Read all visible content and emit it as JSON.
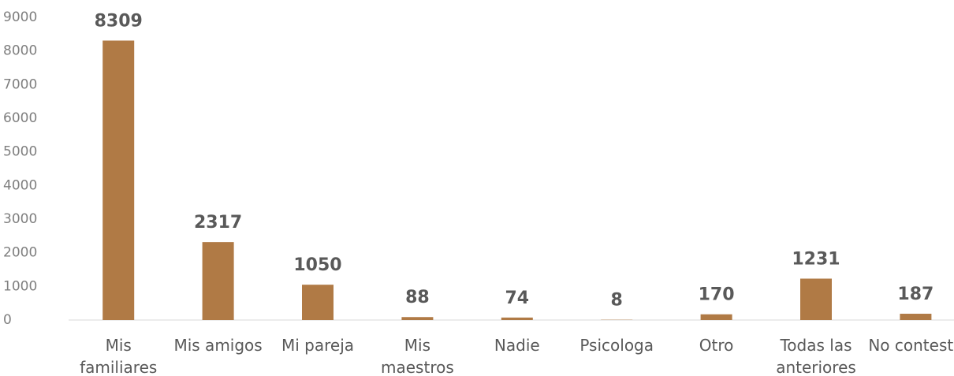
{
  "chart_data": {
    "type": "bar",
    "categories": [
      "Mis familiares",
      "Mis amigos",
      "Mi pareja",
      "Mis maestros",
      "Nadie",
      "Psicologa",
      "Otro",
      "Todas las anteriores",
      "No contesto"
    ],
    "values": [
      8309,
      2317,
      1050,
      88,
      74,
      8,
      170,
      1231,
      187
    ],
    "color": "#b07a45",
    "ylim": [
      0,
      9000
    ],
    "yticks": [
      0,
      1000,
      2000,
      3000,
      4000,
      5000,
      6000,
      7000,
      8000,
      9000
    ],
    "grid": false
  }
}
